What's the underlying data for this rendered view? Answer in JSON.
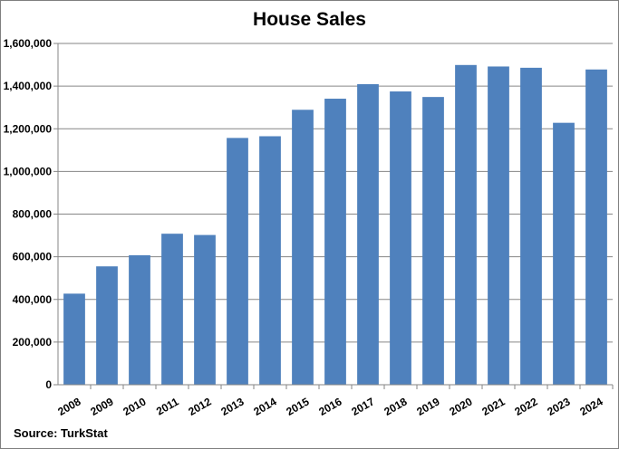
{
  "chart_data": {
    "type": "bar",
    "title": "House Sales",
    "source": "Source: TurkStat",
    "xlabel": "",
    "ylabel": "",
    "categories": [
      "2008",
      "2009",
      "2010",
      "2011",
      "2012",
      "2013",
      "2014",
      "2015",
      "2016",
      "2017",
      "2018",
      "2019",
      "2020",
      "2021",
      "2022",
      "2023",
      "2024"
    ],
    "values": [
      427000,
      555000,
      607000,
      708000,
      702000,
      1157000,
      1165000,
      1289000,
      1341000,
      1409000,
      1375000,
      1349000,
      1499000,
      1492000,
      1486000,
      1228000,
      1478000
    ],
    "ylim": [
      0,
      1600000
    ],
    "yticks": [
      0,
      200000,
      400000,
      600000,
      800000,
      1000000,
      1200000,
      1400000,
      1600000
    ],
    "ytick_labels": [
      "0",
      "200,000",
      "400,000",
      "600,000",
      "800,000",
      "1,000,000",
      "1,200,000",
      "1,400,000",
      "1,600,000"
    ],
    "grid": true,
    "bar_color": "#4f81bd",
    "grid_color": "#868686"
  }
}
